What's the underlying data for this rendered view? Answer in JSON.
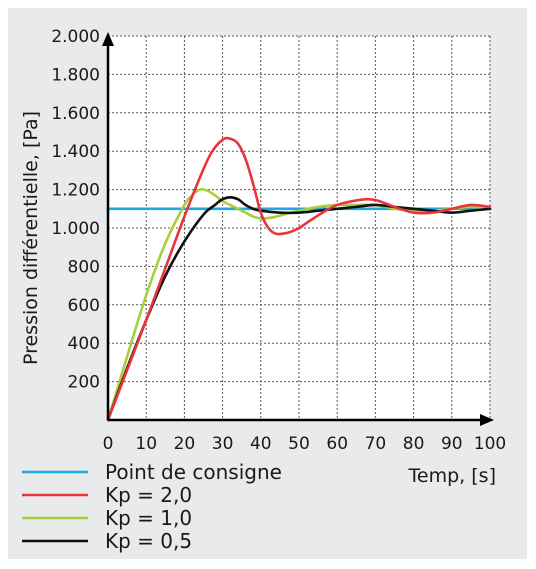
{
  "chart_data": {
    "type": "line",
    "title": "",
    "xlabel": "Temp, [s]",
    "ylabel": "Pression différentielle, [Pa]",
    "xlim": [
      0,
      100
    ],
    "ylim": [
      0,
      2000
    ],
    "grid": true,
    "legend_position": "bottom-left",
    "x_ticks": [
      0,
      10,
      20,
      30,
      40,
      50,
      60,
      70,
      80,
      90,
      100
    ],
    "x_tick_labels": [
      "0",
      "10",
      "20",
      "30",
      "40",
      "50",
      "60",
      "70",
      "80",
      "90",
      "100"
    ],
    "y_ticks": [
      200,
      400,
      600,
      800,
      1000,
      1200,
      1400,
      1600,
      1800,
      2000
    ],
    "y_tick_labels": [
      "200",
      "400",
      "600",
      "800",
      "1.000",
      "1.200",
      "1.400",
      "1.600",
      "1.800",
      "2.000"
    ],
    "series": [
      {
        "name": "Point de consigne",
        "color": "#1ea7e1",
        "x": [
          0,
          100
        ],
        "y": [
          1100,
          1100
        ]
      },
      {
        "name": "Kp = 2,0",
        "color": "#e8343a",
        "x": [
          0,
          5,
          10,
          15,
          20,
          24,
          27,
          30,
          32,
          34,
          36,
          38,
          40,
          42,
          44,
          47,
          50,
          53,
          57,
          60,
          64,
          68,
          71,
          75,
          80,
          85,
          90,
          95,
          100
        ],
        "y": [
          0,
          260,
          520,
          790,
          1060,
          1260,
          1390,
          1460,
          1465,
          1440,
          1360,
          1230,
          1080,
          1000,
          970,
          975,
          1000,
          1040,
          1090,
          1120,
          1140,
          1150,
          1140,
          1110,
          1080,
          1080,
          1100,
          1120,
          1110
        ]
      },
      {
        "name": "Kp = 1,0",
        "color": "#a6cf3b",
        "x": [
          0,
          5,
          10,
          15,
          20,
          22,
          24,
          26,
          28,
          30,
          32,
          34,
          36,
          38,
          40,
          43,
          46,
          50,
          55,
          60,
          65,
          70,
          75,
          80,
          85,
          90,
          95,
          100
        ],
        "y": [
          0,
          330,
          650,
          920,
          1120,
          1170,
          1200,
          1195,
          1170,
          1140,
          1120,
          1100,
          1080,
          1060,
          1050,
          1055,
          1070,
          1090,
          1110,
          1120,
          1120,
          1120,
          1100,
          1090,
          1090,
          1100,
          1110,
          1100
        ]
      },
      {
        "name": "Kp = 0,5",
        "color": "#111111",
        "x": [
          0,
          5,
          10,
          15,
          20,
          25,
          28,
          30,
          32,
          34,
          36,
          38,
          40,
          45,
          50,
          55,
          60,
          65,
          70,
          75,
          80,
          85,
          90,
          95,
          100
        ],
        "y": [
          0,
          270,
          520,
          750,
          930,
          1070,
          1120,
          1150,
          1160,
          1150,
          1120,
          1100,
          1090,
          1080,
          1080,
          1090,
          1100,
          1110,
          1120,
          1110,
          1100,
          1090,
          1080,
          1090,
          1100
        ]
      }
    ]
  }
}
